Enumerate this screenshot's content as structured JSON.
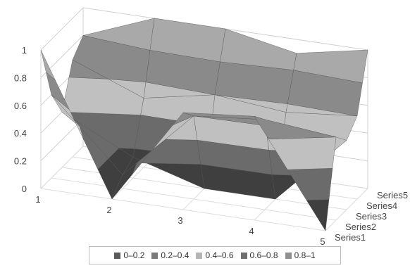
{
  "chart_data": {
    "type": "surface",
    "x": [
      "1",
      "2",
      "3",
      "4",
      "5"
    ],
    "y_ticks": [
      "0",
      "0.2",
      "0.4",
      "0.6",
      "0.8",
      "1"
    ],
    "series": [
      {
        "name": "Series1",
        "values": [
          1.0,
          0.0,
          0.7,
          0.75,
          0.0
        ]
      },
      {
        "name": "Series2",
        "values": [
          0.6,
          0.1,
          0.6,
          0.65,
          0.6
        ]
      },
      {
        "name": "Series3",
        "values": [
          0.4,
          0.15,
          0.0,
          0.0,
          0.5
        ]
      },
      {
        "name": "Series4",
        "values": [
          0.7,
          0.5,
          0.6,
          0.55,
          0.6
        ]
      },
      {
        "name": "Series5",
        "values": [
          0.8,
          1.0,
          1.0,
          0.9,
          1.0
        ]
      }
    ],
    "ylim": [
      0,
      1
    ],
    "legend": {
      "position": "bottom",
      "entries": [
        {
          "label": "0–0.2",
          "color": "#5a5a5a"
        },
        {
          "label": "0.2–0.4",
          "color": "#7a7a7a"
        },
        {
          "label": "0.4–0.6",
          "color": "#b5b5b5"
        },
        {
          "label": "0.6–0.8",
          "color": "#6e6e6e"
        },
        {
          "label": "0.8–1",
          "color": "#909090"
        }
      ]
    },
    "band_colors": [
      "#3f3f3f",
      "#6b6b6b",
      "#c0c0c0",
      "#8a8a8a",
      "#a9a9a9"
    ]
  }
}
